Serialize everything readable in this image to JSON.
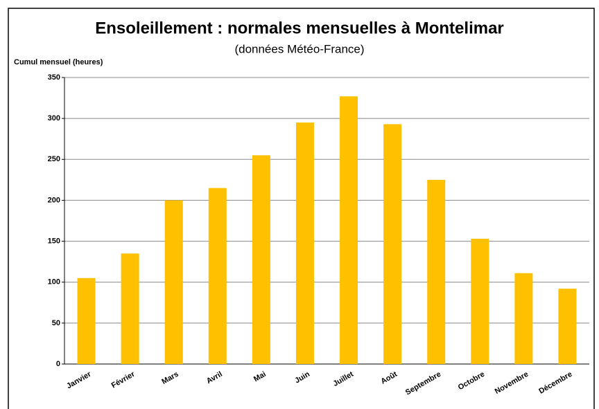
{
  "chart_data": {
    "type": "bar",
    "title": "Ensoleillement : normales mensuelles  à Montelimar",
    "subtitle": "(données Météo-France)",
    "y_label": "Cumul mensuel (heures)",
    "categories": [
      "Janvier",
      "Février",
      "Mars",
      "Avril",
      "Mai",
      "Juin",
      "Juillet",
      "Août",
      "Septembre",
      "Octobre",
      "Novembre",
      "Décembre"
    ],
    "values": [
      105,
      135,
      200,
      215,
      255,
      295,
      327,
      293,
      225,
      153,
      111,
      92
    ],
    "color": "#ffc000",
    "ylim": [
      0,
      350
    ],
    "yticks": [
      0,
      50,
      100,
      150,
      200,
      250,
      300,
      350
    ],
    "grid": true
  }
}
